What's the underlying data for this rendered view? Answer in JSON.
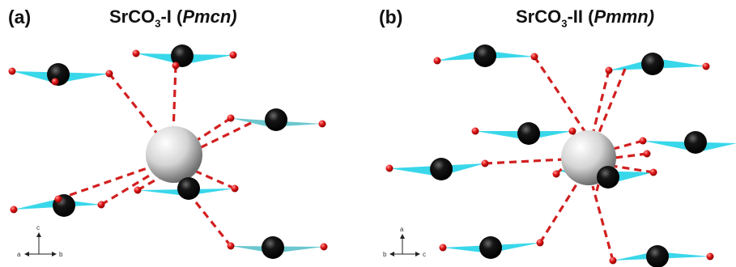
{
  "panel_a": {
    "label": "(a)",
    "title_formula_main": "SrCO",
    "title_formula_sub": "3",
    "title_phase": "-I (",
    "title_group": "Pmcn",
    "title_close": ")",
    "axes": {
      "up": "c",
      "left": "a",
      "right": "b"
    }
  },
  "panel_b": {
    "label": "(b)",
    "title_formula_main": "SrCO",
    "title_formula_sub": "3",
    "title_phase": "-II (",
    "title_group": "Pmmn",
    "title_close": ")",
    "axes": {
      "up": "a",
      "left": "b",
      "right": "c"
    }
  },
  "colors": {
    "strontium": "#d9d9d9",
    "carbon": "#111111",
    "oxygen": "#e01515",
    "carbonate_plane": "#23d3e8",
    "bond": "#d21f1f"
  }
}
